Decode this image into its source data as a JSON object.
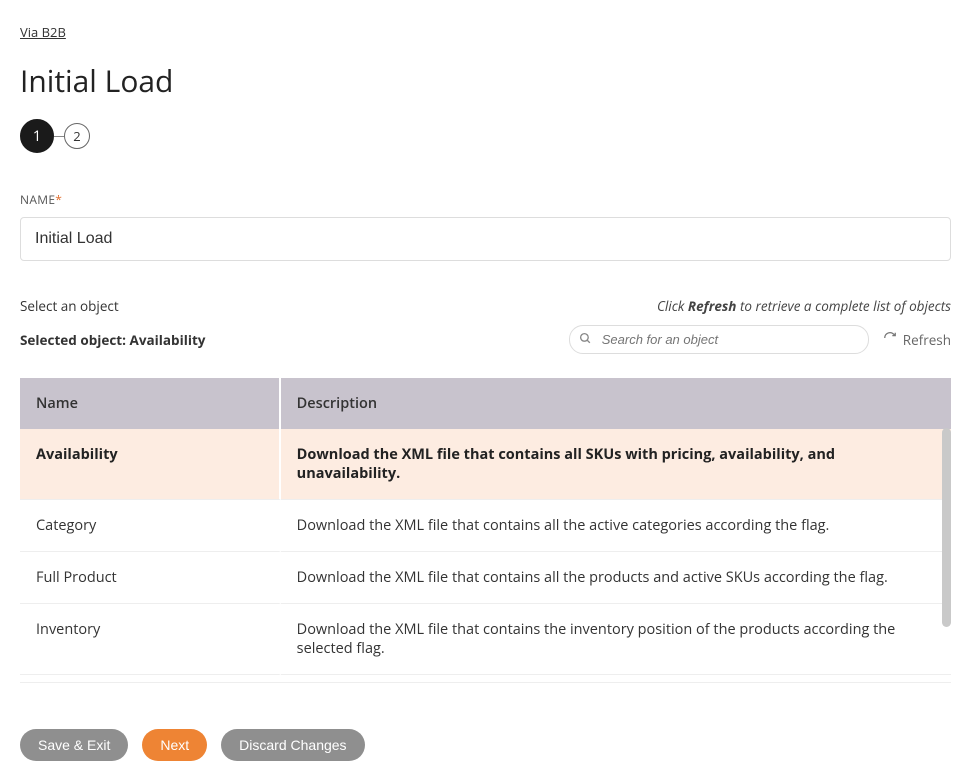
{
  "breadcrumb": "Via B2B",
  "pageTitle": "Initial Load",
  "stepper": {
    "step1": "1",
    "step2": "2",
    "activeIndex": 0
  },
  "nameField": {
    "label": "NAME",
    "requiredMark": "*",
    "value": "Initial Load"
  },
  "objectSection": {
    "selectLabel": "Select an object",
    "hintPrefix": "Click ",
    "hintBold": "Refresh",
    "hintSuffix": " to retrieve a complete list of objects",
    "selectedPrefix": "Selected object: ",
    "selectedName": "Availability",
    "searchPlaceholder": "Search for an object",
    "refreshLabel": "Refresh"
  },
  "table": {
    "columns": {
      "name": "Name",
      "description": "Description"
    },
    "selectedIndex": 0,
    "rows": [
      {
        "name": "Availability",
        "description": "Download the XML file that contains all SKUs with pricing, availability, and unavailability."
      },
      {
        "name": "Category",
        "description": "Download the XML file that contains all the active categories according the flag."
      },
      {
        "name": "Full Product",
        "description": "Download the XML file that contains all the products and active SKUs according the flag."
      },
      {
        "name": "Inventory",
        "description": "Download the XML file that contains the inventory position of the products according the selected flag."
      }
    ]
  },
  "actions": {
    "saveExit": "Save & Exit",
    "next": "Next",
    "discard": "Discard Changes"
  },
  "colors": {
    "primary": "#ee8434",
    "grey": "#8f8f8f",
    "headerBg": "#c8c3cd",
    "selectedRowBg": "#fdece1"
  }
}
